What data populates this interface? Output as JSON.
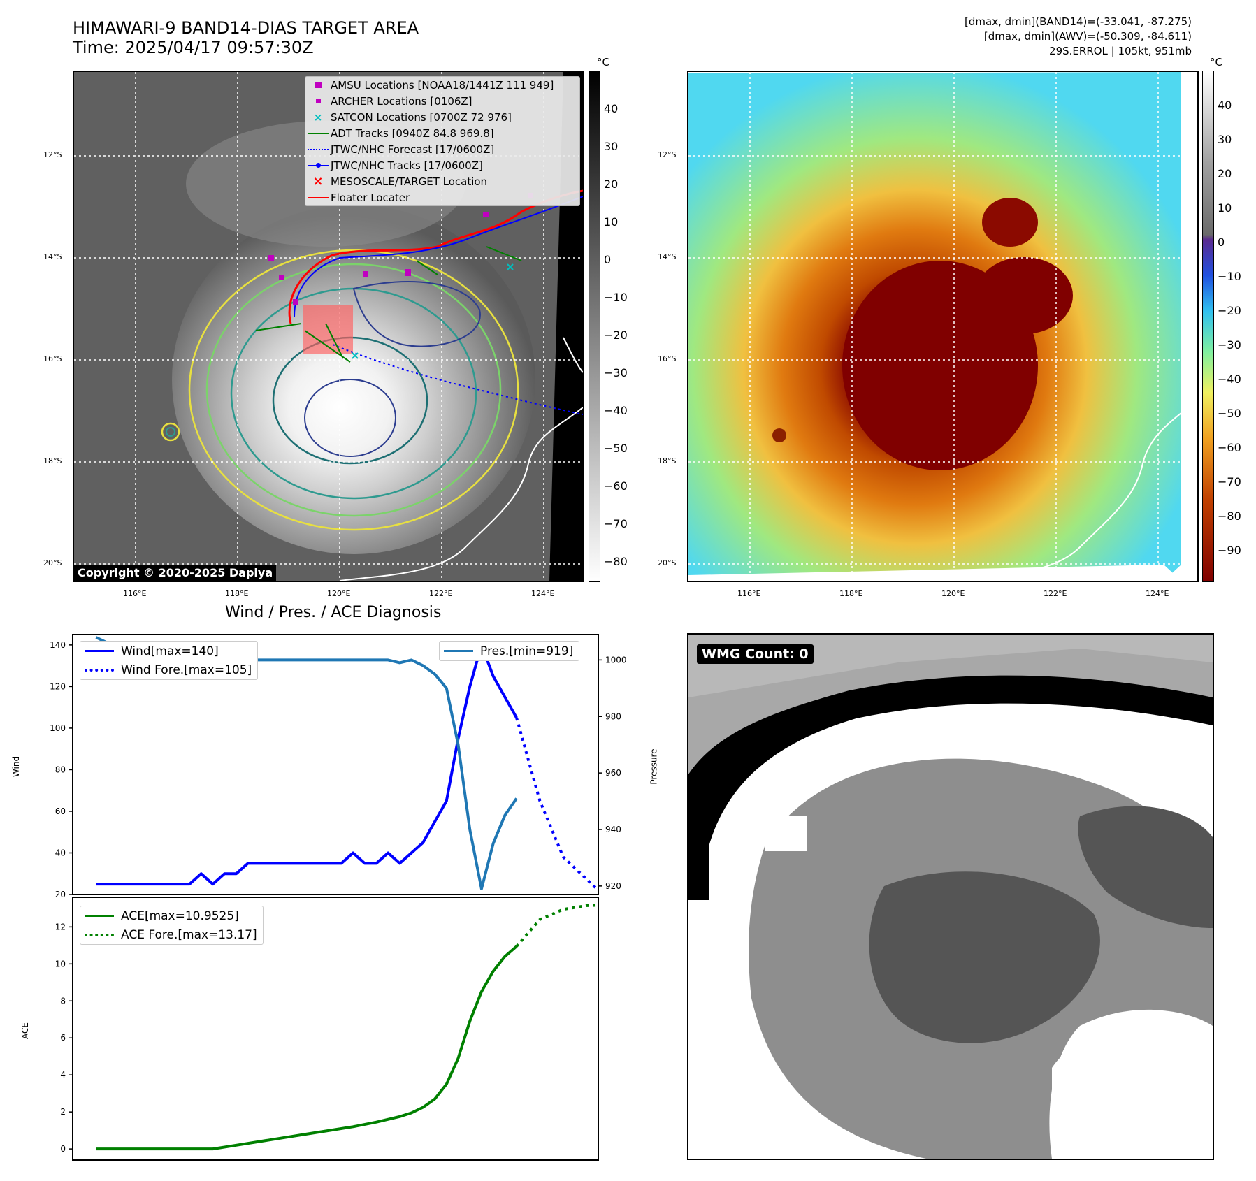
{
  "header": {
    "title_line1": "HIMAWARI-9 BAND14-DIAS TARGET AREA",
    "title_line2": "Time: 2025/04/17 09:57:30Z",
    "info_line1": "[dmax, dmin](BAND14)=(-33.041, -87.275)",
    "info_line2": "[dmax, dmin](AWV)=(-50.309, -84.611)",
    "info_line3": "29S.ERROL | 105kt, 951mb"
  },
  "map_axes": {
    "lat_labels": [
      "12°S",
      "14°S",
      "16°S",
      "18°S",
      "20°S"
    ],
    "lon_labels": [
      "116°E",
      "118°E",
      "120°E",
      "122°E",
      "124°E"
    ]
  },
  "colorbar_left": {
    "unit": "°C",
    "ticks": [
      "40",
      "30",
      "20",
      "10",
      "0",
      "−10",
      "−20",
      "−30",
      "−40",
      "−50",
      "−60",
      "−70",
      "−80"
    ]
  },
  "colorbar_right": {
    "unit": "°C",
    "ticks": [
      "40",
      "30",
      "20",
      "10",
      "0",
      "−10",
      "−20",
      "−30",
      "−40",
      "−50",
      "−60",
      "−70",
      "−80",
      "−90"
    ]
  },
  "map_legend": {
    "items": [
      {
        "label": "AMSU Locations [NOAA18/1441Z 111 949]",
        "symbol": "square",
        "color": "#c000c0"
      },
      {
        "label": "ARCHER Locations [0106Z]",
        "symbol": "square-small",
        "color": "#c000c0"
      },
      {
        "label": "SATCON Locations [0700Z 72 976]",
        "symbol": "x",
        "color": "#00bfbf"
      },
      {
        "label": "ADT Tracks [0940Z 84.8 969.8]",
        "symbol": "line",
        "color": "#008000"
      },
      {
        "label": "JTWC/NHC Forecast [17/0600Z]",
        "symbol": "dotted",
        "color": "#0000ff"
      },
      {
        "label": "JTWC/NHC Tracks [17/0600Z]",
        "symbol": "line-dot",
        "color": "#0000ff"
      },
      {
        "label": "MESOSCALE/TARGET Location",
        "symbol": "x",
        "color": "#ff0000"
      },
      {
        "label": "Floater Locater",
        "symbol": "line",
        "color": "#ff0000"
      }
    ]
  },
  "copyright": "Copyright © 2020-2025 Dapiya",
  "wmg_label": "WMG Count: 0",
  "chart_data": [
    {
      "type": "line",
      "title": "Wind / Pres. / ACE Diagnosis",
      "ylabel": "Wind",
      "ylabel_right": "Pressure",
      "ylim": [
        20,
        145
      ],
      "ylim_right": [
        917,
        1009
      ],
      "yticks": [
        20,
        40,
        60,
        80,
        100,
        120,
        140
      ],
      "yticks_right": [
        920,
        940,
        960,
        980,
        1000
      ],
      "xlim": [
        0,
        45
      ],
      "series": [
        {
          "name": "Wind[max=140]",
          "color": "#0000ff",
          "style": "solid",
          "x": [
            2,
            4,
            6,
            8,
            9,
            10,
            11,
            12,
            13,
            14,
            15,
            16,
            17,
            18,
            19,
            20,
            21,
            22,
            23,
            24,
            25,
            26,
            27,
            28,
            29,
            30,
            31,
            32,
            33,
            34,
            35,
            36,
            37,
            38
          ],
          "values": [
            25,
            25,
            25,
            25,
            25,
            25,
            30,
            25,
            30,
            30,
            35,
            35,
            35,
            35,
            35,
            35,
            35,
            35,
            35,
            40,
            35,
            35,
            40,
            35,
            40,
            45,
            55,
            65,
            95,
            120,
            140,
            125,
            115,
            105
          ]
        },
        {
          "name": "Wind Fore.[max=105]",
          "color": "#0000ff",
          "style": "dotted",
          "x": [
            38,
            40,
            42,
            45
          ],
          "values": [
            105,
            65,
            38,
            22
          ]
        },
        {
          "name": "Pres.[min=919]",
          "color": "#1f77b4",
          "style": "solid",
          "axis": "right",
          "x": [
            2,
            3,
            4,
            5,
            6,
            7,
            8,
            9,
            10,
            11,
            12,
            13,
            14,
            15,
            16,
            17,
            18,
            19,
            20,
            21,
            22,
            23,
            24,
            25,
            26,
            27,
            28,
            29,
            30,
            31,
            32,
            33,
            34,
            35,
            36,
            37,
            38
          ],
          "values": [
            1008,
            1006,
            1006,
            1004,
            1003,
            1001,
            1000,
            1000,
            999,
            1000,
            1000,
            1000,
            1000,
            1000,
            1000,
            1000,
            1000,
            1000,
            1000,
            1000,
            1000,
            1000,
            1000,
            1000,
            1000,
            1000,
            999,
            1000,
            998,
            995,
            990,
            970,
            940,
            919,
            935,
            945,
            951
          ]
        }
      ]
    },
    {
      "type": "line",
      "ylabel": "ACE",
      "ylim": [
        -0.6,
        13.6
      ],
      "yticks": [
        0,
        2,
        4,
        6,
        8,
        10,
        12
      ],
      "xlim": [
        0,
        45
      ],
      "series": [
        {
          "name": "ACE[max=10.9525]",
          "color": "#008000",
          "style": "solid",
          "x": [
            2,
            12,
            14,
            16,
            18,
            20,
            22,
            24,
            26,
            28,
            29,
            30,
            31,
            32,
            33,
            34,
            35,
            36,
            37,
            38
          ],
          "values": [
            0,
            0,
            0.2,
            0.4,
            0.6,
            0.8,
            1.0,
            1.2,
            1.45,
            1.75,
            1.95,
            2.25,
            2.7,
            3.5,
            4.9,
            6.9,
            8.5,
            9.6,
            10.4,
            10.95
          ]
        },
        {
          "name": "ACE Fore.[max=13.17]",
          "color": "#008000",
          "style": "dotted",
          "x": [
            38,
            40,
            42,
            44,
            45
          ],
          "values": [
            10.95,
            12.4,
            12.95,
            13.15,
            13.17
          ]
        }
      ]
    }
  ]
}
